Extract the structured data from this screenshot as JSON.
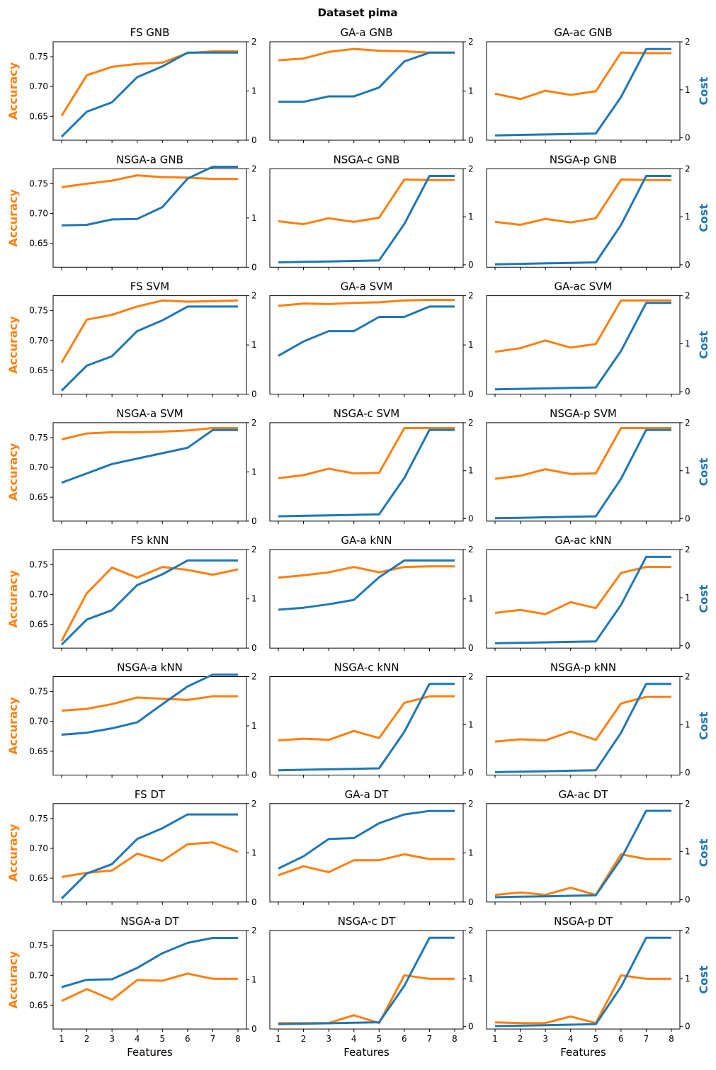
{
  "figure": {
    "title": "Dataset pima",
    "colors": {
      "accuracy": "#ff7f0e",
      "cost": "#1f77b4"
    }
  },
  "chart_data": {
    "type": "line",
    "title": "Dataset pima",
    "x": [
      1,
      2,
      3,
      4,
      5,
      6,
      7,
      8
    ],
    "xlabel": "Features",
    "ylabel_left": "Accuracy",
    "ylabel_right": "Cost",
    "ylim_left": [
      0.61,
      0.775
    ],
    "ylim_right": [
      0,
      2
    ],
    "yticks_left": [
      "0.65",
      "0.70",
      "0.75"
    ],
    "yticks_right": [
      "0",
      "1",
      "2"
    ],
    "right_axis_variants": [
      {
        "ylim": [
          0,
          2
        ]
      },
      {
        "ylim": [
          -0.05,
          2
        ]
      }
    ],
    "grid": false,
    "panels": [
      {
        "title": "FS GNB",
        "right_axis": 0,
        "accuracy": [
          0.651,
          0.719,
          0.733,
          0.738,
          0.74,
          0.756,
          0.759,
          0.759
        ],
        "cost": [
          0.07,
          0.58,
          0.77,
          1.28,
          1.5,
          1.78,
          1.78,
          1.78
        ]
      },
      {
        "title": "GA-a GNB",
        "right_axis": 0,
        "accuracy": [
          0.744,
          0.747,
          0.758,
          0.763,
          0.76,
          0.759,
          0.757,
          0.757
        ],
        "cost": [
          0.78,
          0.78,
          0.89,
          0.89,
          1.07,
          1.6,
          1.78,
          1.78
        ]
      },
      {
        "title": "GA-ac GNB",
        "right_axis": 1,
        "accuracy": [
          0.688,
          0.679,
          0.693,
          0.686,
          0.692,
          0.757,
          0.756,
          0.756
        ],
        "cost": [
          0.05,
          0.06,
          0.07,
          0.08,
          0.09,
          0.85,
          1.85,
          1.85
        ]
      },
      {
        "title": "NSGA-a GNB",
        "right_axis": 0,
        "accuracy": [
          0.744,
          0.75,
          0.755,
          0.764,
          0.761,
          0.76,
          0.758,
          0.758
        ],
        "cost": [
          0.85,
          0.86,
          0.97,
          0.98,
          1.22,
          1.8,
          2.04,
          2.04
        ]
      },
      {
        "title": "NSGA-c GNB",
        "right_axis": 1,
        "accuracy": [
          0.687,
          0.682,
          0.692,
          0.686,
          0.693,
          0.757,
          0.756,
          0.756
        ],
        "cost": [
          0.05,
          0.06,
          0.07,
          0.08,
          0.09,
          0.85,
          1.85,
          1.85
        ]
      },
      {
        "title": "NSGA-p GNB",
        "right_axis": 1,
        "accuracy": [
          0.686,
          0.681,
          0.691,
          0.685,
          0.692,
          0.757,
          0.756,
          0.756
        ],
        "cost": [
          0.01,
          0.02,
          0.03,
          0.04,
          0.05,
          0.83,
          1.85,
          1.85
        ]
      },
      {
        "title": "FS SVM",
        "right_axis": 0,
        "accuracy": [
          0.663,
          0.735,
          0.743,
          0.757,
          0.767,
          0.765,
          0.766,
          0.767
        ],
        "cost": [
          0.07,
          0.58,
          0.77,
          1.28,
          1.5,
          1.78,
          1.78,
          1.78
        ]
      },
      {
        "title": "GA-a SVM",
        "right_axis": 0,
        "accuracy": [
          0.758,
          0.762,
          0.761,
          0.763,
          0.764,
          0.767,
          0.768,
          0.768
        ],
        "cost": [
          0.78,
          1.07,
          1.28,
          1.28,
          1.57,
          1.57,
          1.78,
          1.78
        ]
      },
      {
        "title": "GA-ac SVM",
        "right_axis": 1,
        "accuracy": [
          0.681,
          0.687,
          0.7,
          0.688,
          0.694,
          0.767,
          0.767,
          0.767
        ],
        "cost": [
          0.05,
          0.06,
          0.07,
          0.08,
          0.09,
          0.85,
          1.85,
          1.85
        ]
      },
      {
        "title": "NSGA-a SVM",
        "right_axis": 0,
        "accuracy": [
          0.747,
          0.757,
          0.759,
          0.759,
          0.76,
          0.762,
          0.766,
          0.766
        ],
        "cost": [
          0.78,
          0.97,
          1.16,
          1.27,
          1.38,
          1.49,
          1.85,
          1.85
        ]
      },
      {
        "title": "NSGA-c SVM",
        "right_axis": 1,
        "accuracy": [
          0.682,
          0.687,
          0.698,
          0.69,
          0.691,
          0.766,
          0.766,
          0.766
        ],
        "cost": [
          0.05,
          0.06,
          0.07,
          0.08,
          0.09,
          0.85,
          1.85,
          1.85
        ]
      },
      {
        "title": "NSGA-p SVM",
        "right_axis": 1,
        "accuracy": [
          0.681,
          0.686,
          0.697,
          0.689,
          0.69,
          0.766,
          0.766,
          0.766
        ],
        "cost": [
          0.01,
          0.02,
          0.03,
          0.04,
          0.05,
          0.83,
          1.85,
          1.85
        ]
      },
      {
        "title": "FS kNN",
        "right_axis": 0,
        "accuracy": [
          0.622,
          0.702,
          0.745,
          0.728,
          0.746,
          0.741,
          0.733,
          0.742
        ],
        "cost": [
          0.07,
          0.58,
          0.77,
          1.28,
          1.5,
          1.78,
          1.78,
          1.78
        ]
      },
      {
        "title": "GA-a kNN",
        "right_axis": 0,
        "accuracy": [
          0.728,
          0.732,
          0.737,
          0.746,
          0.737,
          0.746,
          0.747,
          0.747
        ],
        "cost": [
          0.78,
          0.82,
          0.89,
          0.98,
          1.44,
          1.78,
          1.78,
          1.78
        ]
      },
      {
        "title": "GA-ac kNN",
        "right_axis": 1,
        "accuracy": [
          0.669,
          0.674,
          0.667,
          0.687,
          0.677,
          0.736,
          0.746,
          0.746
        ],
        "cost": [
          0.05,
          0.06,
          0.07,
          0.08,
          0.09,
          0.85,
          1.85,
          1.85
        ]
      },
      {
        "title": "NSGA-a kNN",
        "right_axis": 0,
        "accuracy": [
          0.718,
          0.721,
          0.729,
          0.74,
          0.738,
          0.736,
          0.742,
          0.742
        ],
        "cost": [
          0.82,
          0.86,
          0.95,
          1.07,
          1.44,
          1.8,
          2.04,
          2.04
        ]
      },
      {
        "title": "NSGA-c kNN",
        "right_axis": 1,
        "accuracy": [
          0.668,
          0.671,
          0.669,
          0.684,
          0.672,
          0.731,
          0.742,
          0.742
        ],
        "cost": [
          0.05,
          0.06,
          0.07,
          0.08,
          0.09,
          0.85,
          1.85,
          1.85
        ]
      },
      {
        "title": "NSGA-p kNN",
        "right_axis": 1,
        "accuracy": [
          0.666,
          0.67,
          0.668,
          0.683,
          0.669,
          0.73,
          0.741,
          0.741
        ],
        "cost": [
          0.01,
          0.02,
          0.03,
          0.04,
          0.05,
          0.83,
          1.85,
          1.85
        ]
      },
      {
        "title": "FS DT",
        "right_axis": 0,
        "accuracy": [
          0.652,
          0.659,
          0.663,
          0.691,
          0.679,
          0.707,
          0.71,
          0.694
        ],
        "cost": [
          0.07,
          0.58,
          0.77,
          1.28,
          1.5,
          1.78,
          1.78,
          1.78
        ]
      },
      {
        "title": "GA-a DT",
        "right_axis": 0,
        "accuracy": [
          0.655,
          0.67,
          0.66,
          0.68,
          0.68,
          0.69,
          0.682,
          0.682
        ],
        "cost": [
          0.68,
          0.93,
          1.28,
          1.3,
          1.6,
          1.78,
          1.85,
          1.85
        ]
      },
      {
        "title": "GA-ac DT",
        "right_axis": 1,
        "accuracy": [
          0.622,
          0.626,
          0.622,
          0.634,
          0.622,
          0.69,
          0.682,
          0.682
        ],
        "cost": [
          0.05,
          0.06,
          0.07,
          0.08,
          0.09,
          0.85,
          1.85,
          1.85
        ]
      },
      {
        "title": "NSGA-a DT",
        "right_axis": 0,
        "accuracy": [
          0.657,
          0.677,
          0.659,
          0.692,
          0.691,
          0.703,
          0.694,
          0.694
        ],
        "cost": [
          0.85,
          1.0,
          1.01,
          1.24,
          1.54,
          1.75,
          1.85,
          1.85
        ]
      },
      {
        "title": "NSGA-c DT",
        "right_axis": 1,
        "accuracy": [
          0.62,
          0.62,
          0.62,
          0.633,
          0.62,
          0.7,
          0.694,
          0.694
        ],
        "cost": [
          0.05,
          0.06,
          0.07,
          0.08,
          0.09,
          0.85,
          1.85,
          1.85
        ]
      },
      {
        "title": "NSGA-p DT",
        "right_axis": 1,
        "accuracy": [
          0.621,
          0.62,
          0.62,
          0.631,
          0.62,
          0.7,
          0.694,
          0.694
        ],
        "cost": [
          0.01,
          0.02,
          0.03,
          0.04,
          0.05,
          0.83,
          1.85,
          1.85
        ]
      }
    ]
  }
}
